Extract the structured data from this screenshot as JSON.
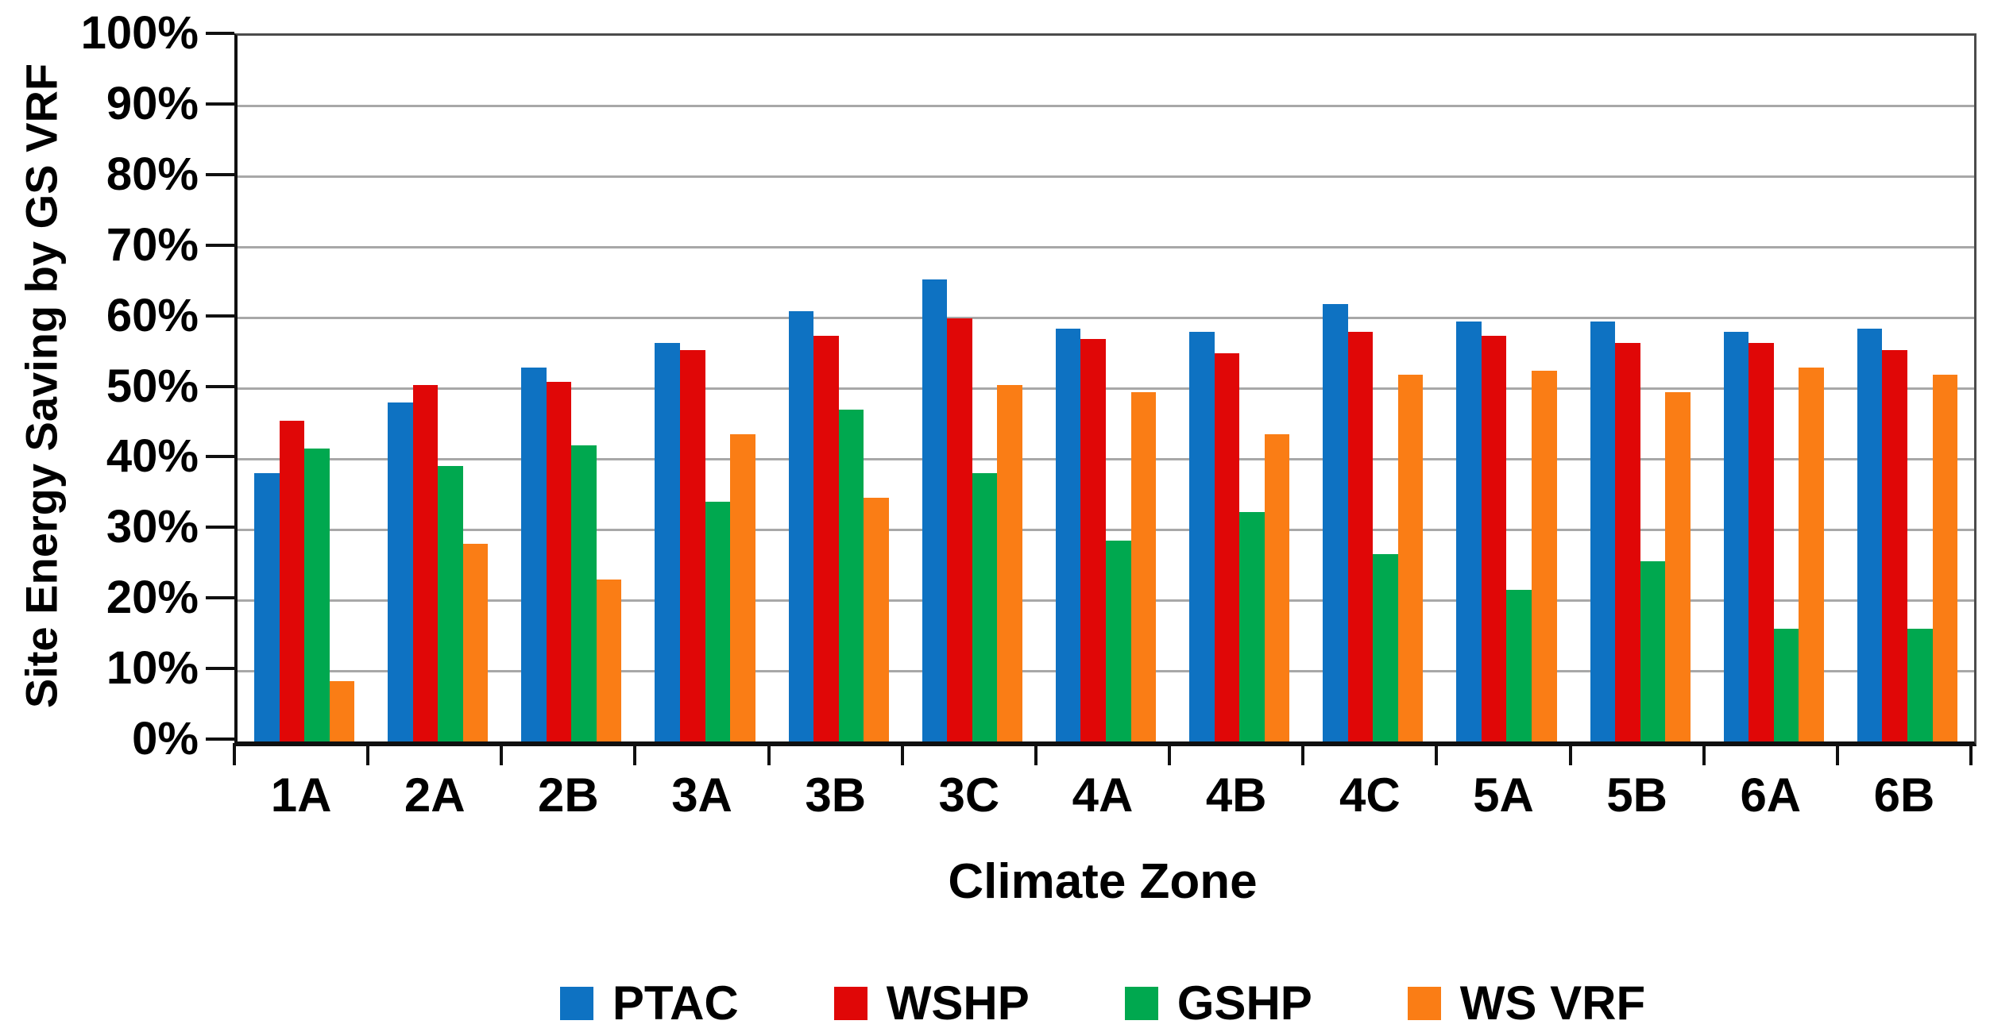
{
  "chart_data": {
    "type": "bar",
    "title": "",
    "xlabel": "Climate Zone",
    "ylabel": "Site Energy Saving by GS VRF",
    "categories": [
      "1A",
      "2A",
      "2B",
      "3A",
      "3B",
      "3C",
      "4A",
      "4B",
      "4C",
      "5A",
      "5B",
      "6A",
      "6B"
    ],
    "series": [
      {
        "name": "PTAC",
        "color": "#0E72C2",
        "values": [
          38.0,
          48.0,
          53.0,
          56.5,
          61.0,
          65.5,
          58.5,
          58.0,
          62.0,
          59.5,
          59.5,
          58.0,
          58.5
        ]
      },
      {
        "name": "WSHP",
        "color": "#E00707",
        "values": [
          45.5,
          50.5,
          51.0,
          55.5,
          57.5,
          60.0,
          57.0,
          55.0,
          58.0,
          57.5,
          56.5,
          56.5,
          55.5
        ]
      },
      {
        "name": "GSHP",
        "color": "#00A84F",
        "values": [
          41.5,
          39.0,
          42.0,
          34.0,
          47.0,
          38.0,
          28.5,
          32.5,
          26.5,
          21.5,
          25.5,
          16.0,
          16.0
        ]
      },
      {
        "name": "WS VRF",
        "color": "#FA7D15",
        "values": [
          8.5,
          28.0,
          23.0,
          43.5,
          34.5,
          50.5,
          49.5,
          43.5,
          52.0,
          52.5,
          49.5,
          53.0,
          52.0
        ]
      }
    ],
    "ylim": [
      0,
      100
    ],
    "ytick_step": 10,
    "ytick_labels": [
      "0%",
      "10%",
      "20%",
      "30%",
      "40%",
      "50%",
      "60%",
      "70%",
      "80%",
      "90%",
      "100%"
    ],
    "grid": true,
    "legend_position": "bottom",
    "style": {
      "gridline_color": "#a8a8a8",
      "axis_color": "#101010",
      "border_color": "#4b4b4b",
      "text_color": "#000000",
      "background": "#ffffff"
    }
  }
}
